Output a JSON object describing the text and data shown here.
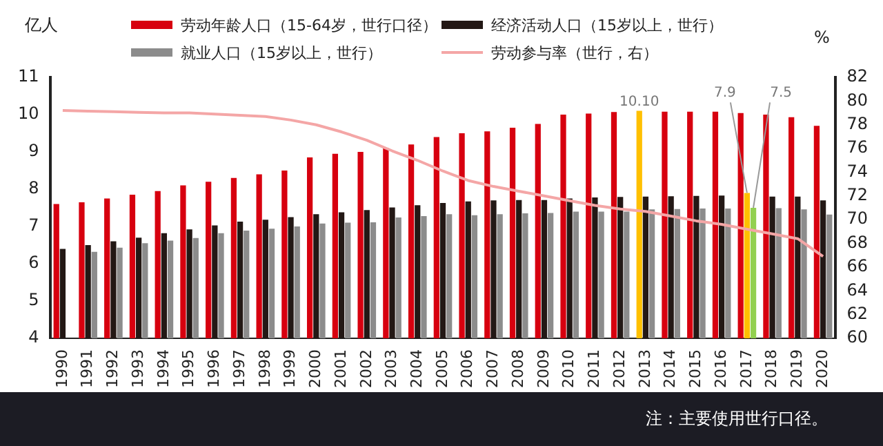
{
  "chart_data": {
    "type": "bar",
    "ylabel": "亿人",
    "y2label": "%",
    "categories": [
      "1990",
      "1991",
      "1992",
      "1993",
      "1994",
      "1995",
      "1996",
      "1997",
      "1998",
      "1999",
      "2000",
      "2001",
      "2002",
      "2003",
      "2004",
      "2005",
      "2006",
      "2007",
      "2008",
      "2009",
      "2010",
      "2011",
      "2012",
      "2013",
      "2014",
      "2015",
      "2016",
      "2017",
      "2018",
      "2019",
      "2020"
    ],
    "series": [
      {
        "name": "劳动年龄人口（15-64岁，世行口径）",
        "color": "#d7000f",
        "colors": [
          "#d7000f",
          "#d7000f",
          "#d7000f",
          "#d7000f",
          "#d7000f",
          "#d7000f",
          "#d7000f",
          "#d7000f",
          "#d7000f",
          "#d7000f",
          "#d7000f",
          "#d7000f",
          "#d7000f",
          "#d7000f",
          "#d7000f",
          "#d7000f",
          "#d7000f",
          "#d7000f",
          "#d7000f",
          "#d7000f",
          "#d7000f",
          "#d7000f",
          "#d7000f",
          "#ffc000",
          "#d7000f",
          "#d7000f",
          "#d7000f",
          "#d7000f",
          "#d7000f",
          "#d7000f",
          "#d7000f"
        ],
        "values": [
          7.6,
          7.65,
          7.75,
          7.85,
          7.95,
          8.1,
          8.2,
          8.3,
          8.4,
          8.5,
          8.85,
          8.95,
          9.0,
          9.1,
          9.2,
          9.4,
          9.5,
          9.55,
          9.65,
          9.75,
          10.0,
          10.03,
          10.07,
          10.1,
          10.08,
          10.08,
          10.08,
          10.04,
          10.0,
          9.93,
          9.7
        ],
        "value_labels": [
          null,
          null,
          null,
          null,
          null,
          null,
          null,
          null,
          null,
          null,
          null,
          null,
          null,
          null,
          null,
          null,
          null,
          null,
          null,
          null,
          null,
          null,
          null,
          "10.10",
          null,
          null,
          null,
          null,
          null,
          null,
          null
        ]
      },
      {
        "name": "经济活动人口（15岁以上，世行）",
        "color": "#231815",
        "colors": [
          "#231815",
          "#231815",
          "#231815",
          "#231815",
          "#231815",
          "#231815",
          "#231815",
          "#231815",
          "#231815",
          "#231815",
          "#231815",
          "#231815",
          "#231815",
          "#231815",
          "#231815",
          "#231815",
          "#231815",
          "#231815",
          "#231815",
          "#231815",
          "#231815",
          "#231815",
          "#231815",
          "#231815",
          "#231815",
          "#231815",
          "#231815",
          "#ffc000",
          "#231815",
          "#231815",
          "#231815"
        ],
        "values": [
          6.4,
          6.5,
          6.6,
          6.7,
          6.82,
          6.92,
          7.03,
          7.13,
          7.18,
          7.25,
          7.33,
          7.38,
          7.44,
          7.51,
          7.57,
          7.63,
          7.67,
          7.7,
          7.71,
          7.71,
          7.75,
          7.78,
          7.79,
          7.8,
          7.81,
          7.82,
          7.83,
          7.9,
          7.8,
          7.8,
          7.7
        ],
        "value_labels": [
          null,
          null,
          null,
          null,
          null,
          null,
          null,
          null,
          null,
          null,
          null,
          null,
          null,
          null,
          null,
          null,
          null,
          null,
          null,
          null,
          null,
          null,
          null,
          null,
          null,
          null,
          null,
          "7.9",
          null,
          null,
          null
        ]
      },
      {
        "name": "就业人口（15岁以上，世行）",
        "color": "#8c8c8c",
        "colors": [
          "#8c8c8c",
          "#8c8c8c",
          "#8c8c8c",
          "#8c8c8c",
          "#8c8c8c",
          "#8c8c8c",
          "#8c8c8c",
          "#8c8c8c",
          "#8c8c8c",
          "#8c8c8c",
          "#8c8c8c",
          "#8c8c8c",
          "#8c8c8c",
          "#8c8c8c",
          "#8c8c8c",
          "#8c8c8c",
          "#8c8c8c",
          "#8c8c8c",
          "#8c8c8c",
          "#8c8c8c",
          "#8c8c8c",
          "#8c8c8c",
          "#8c8c8c",
          "#8c8c8c",
          "#8c8c8c",
          "#8c8c8c",
          "#8c8c8c",
          "#92d050",
          "#8c8c8c",
          "#8c8c8c",
          "#8c8c8c"
        ],
        "values": [
          null,
          6.32,
          6.43,
          6.55,
          6.62,
          6.69,
          6.82,
          6.89,
          6.94,
          7.0,
          7.08,
          7.1,
          7.11,
          7.24,
          7.28,
          7.33,
          7.3,
          7.33,
          7.35,
          7.36,
          7.4,
          7.4,
          7.4,
          7.46,
          7.47,
          7.48,
          7.48,
          7.5,
          7.49,
          7.46,
          7.32
        ],
        "value_labels": [
          null,
          null,
          null,
          null,
          null,
          null,
          null,
          null,
          null,
          null,
          null,
          null,
          null,
          null,
          null,
          null,
          null,
          null,
          null,
          null,
          null,
          null,
          null,
          null,
          null,
          null,
          null,
          "7.5",
          null,
          null,
          null
        ]
      },
      {
        "name": "劳动参与率（世行，右）",
        "type": "line",
        "axis": "y2",
        "color": "#f4a6a6",
        "values": [
          79.2,
          79.15,
          79.1,
          79.05,
          79.0,
          79.0,
          78.9,
          78.8,
          78.7,
          78.4,
          78.0,
          77.4,
          76.7,
          75.8,
          75.0,
          74.1,
          73.3,
          72.8,
          72.4,
          72.0,
          71.6,
          71.2,
          70.9,
          70.7,
          70.3,
          69.9,
          69.6,
          69.2,
          68.8,
          68.4,
          66.9
        ]
      }
    ],
    "ylim": [
      4,
      11
    ],
    "yticks": [
      4,
      5,
      6,
      7,
      8,
      9,
      10,
      11
    ],
    "y2lim": [
      60,
      82
    ],
    "y2ticks": [
      60,
      62,
      64,
      66,
      68,
      70,
      72,
      74,
      76,
      78,
      80,
      82
    ],
    "grid": false,
    "legend": "top",
    "marker": "none",
    "annotations": [
      "注：主要使用世行口径。"
    ]
  }
}
